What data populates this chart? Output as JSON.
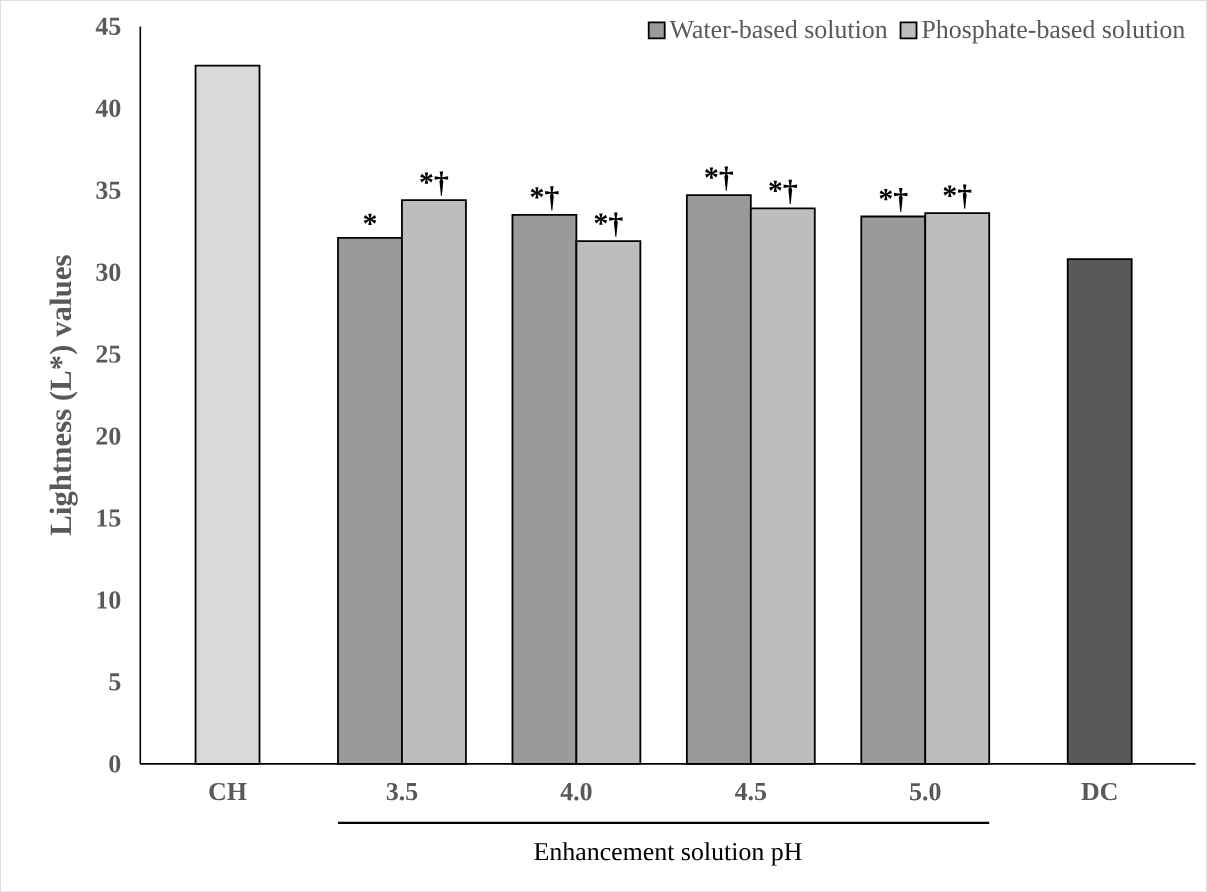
{
  "chart_data": {
    "type": "bar",
    "ylabel": "Lightness (L*) values",
    "xlabel": "Enhancement solution pH",
    "categories": [
      "CH",
      "3.5",
      "4.0",
      "4.5",
      "5.0",
      "DC"
    ],
    "series": [
      {
        "color": "#d9d9d9",
        "values": [
          42.6,
          null,
          null,
          null,
          null,
          null
        ]
      },
      {
        "name": "Water-based solution",
        "color": "#9a9a9a",
        "values": [
          null,
          32.1,
          33.5,
          34.7,
          33.4,
          null
        ],
        "value_labels": [
          null,
          "*",
          "*†",
          "*†",
          "*†",
          null
        ]
      },
      {
        "name": "Phosphate-based solution",
        "color": "#bdbdbd",
        "values": [
          null,
          34.4,
          31.9,
          33.9,
          33.6,
          null
        ],
        "value_labels": [
          null,
          "*†",
          "*†",
          "*†",
          "*†",
          null
        ]
      },
      {
        "color": "#595959",
        "values": [
          null,
          null,
          null,
          null,
          null,
          30.8
        ]
      }
    ],
    "ylim": [
      0,
      45
    ],
    "yticks": [
      0,
      5,
      10,
      15,
      20,
      25,
      30,
      35,
      40,
      45
    ],
    "legend": "top right",
    "grid": false
  }
}
